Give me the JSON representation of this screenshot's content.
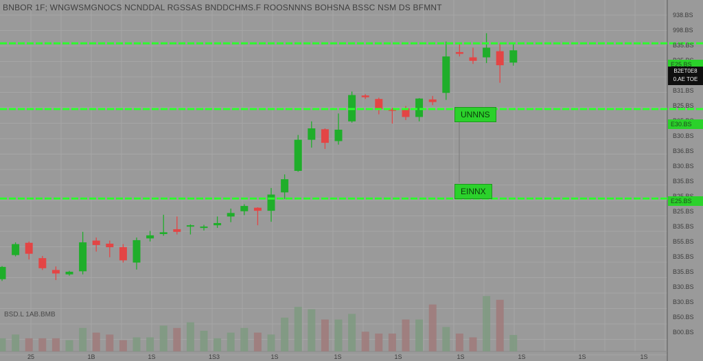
{
  "header": {
    "title": "BNBOR 1F;  WNGWSMGNOCS  NCNDDAL  RGSSAS  BNDDCHMS.F  ROOSNNNS  BOHSNA  BSSC  NSM  DS  BFMNT"
  },
  "volume": {
    "label": "BSD.L  1AB.BMB"
  },
  "price_axis_labels": [
    "938.BS",
    "998.BS",
    "B35.BS",
    "B35.BS",
    "B53.BS",
    "B31.BS",
    "B25.BS",
    "B05.BS",
    "B30.BS",
    "B36.BS",
    "B30.BS",
    "B35.BS",
    "B25.BS",
    "B25.BS",
    "B35.BS",
    "B55.BS",
    "B35.BS",
    "B35.BS",
    "B30.BS",
    "B30.BS",
    "B50.BS",
    "B00.BS"
  ],
  "time_axis_labels": [
    "25",
    "1B",
    "1S",
    "1S3",
    "1S",
    "1S",
    "1S",
    "1S",
    "1S",
    "1S",
    "1S"
  ],
  "levels": [
    {
      "price_tag": "E25.BS",
      "label": ""
    },
    {
      "price_tag": "E30.BS",
      "label": "UNNNS"
    },
    {
      "price_tag": "E25.BS",
      "label": "EINNX"
    }
  ],
  "current_price": {
    "line1": "B2ET0E8",
    "line2": "0.AE TOE"
  },
  "colors": {
    "background": "#9a9a9a",
    "grid": "#a6a6a6",
    "up": "#1fae2a",
    "down": "#e34545",
    "level": "#2cff2c",
    "volume_up": "#7e9a80",
    "volume_down": "#a07a7a"
  },
  "chart_data": {
    "type": "candlestick",
    "y_range": [
      180,
      850
    ],
    "volume_range": [
      0,
      100
    ],
    "candles": [
      {
        "o": 232,
        "c": 260,
        "h": 262,
        "l": 228
      },
      {
        "o": 287,
        "c": 312,
        "h": 316,
        "l": 284
      },
      {
        "o": 315,
        "c": 290,
        "h": 318,
        "l": 277
      },
      {
        "o": 280,
        "c": 257,
        "h": 285,
        "l": 253
      },
      {
        "o": 253,
        "c": 245,
        "h": 261,
        "l": 230
      },
      {
        "o": 243,
        "c": 249,
        "h": 251,
        "l": 240
      },
      {
        "o": 250,
        "c": 316,
        "h": 340,
        "l": 243
      },
      {
        "o": 320,
        "c": 310,
        "h": 327,
        "l": 295
      },
      {
        "o": 313,
        "c": 305,
        "h": 320,
        "l": 282
      },
      {
        "o": 305,
        "c": 275,
        "h": 312,
        "l": 270
      },
      {
        "o": 270,
        "c": 321,
        "h": 327,
        "l": 254
      },
      {
        "o": 325,
        "c": 332,
        "h": 342,
        "l": 318
      },
      {
        "o": 335,
        "c": 339,
        "h": 379,
        "l": 331
      },
      {
        "o": 346,
        "c": 340,
        "h": 375,
        "l": 334
      },
      {
        "o": 352,
        "c": 355,
        "h": 357,
        "l": 334
      },
      {
        "o": 350,
        "c": 352,
        "h": 356,
        "l": 343
      },
      {
        "o": 355,
        "c": 360,
        "h": 375,
        "l": 349
      },
      {
        "o": 375,
        "c": 383,
        "h": 393,
        "l": 362
      },
      {
        "o": 387,
        "c": 399,
        "h": 403,
        "l": 378
      },
      {
        "o": 395,
        "c": 388,
        "h": 396,
        "l": 355
      },
      {
        "o": 388,
        "c": 425,
        "h": 440,
        "l": 363
      },
      {
        "o": 430,
        "c": 460,
        "h": 471,
        "l": 415
      },
      {
        "o": 479,
        "c": 550,
        "h": 561,
        "l": 477
      },
      {
        "o": 550,
        "c": 576,
        "h": 592,
        "l": 532
      },
      {
        "o": 574,
        "c": 543,
        "h": 576,
        "l": 529
      },
      {
        "o": 547,
        "c": 573,
        "h": 610,
        "l": 539
      },
      {
        "o": 592,
        "c": 652,
        "h": 660,
        "l": 589
      },
      {
        "o": 651,
        "c": 647,
        "h": 654,
        "l": 643
      },
      {
        "o": 643,
        "c": 620,
        "h": 646,
        "l": 608
      },
      {
        "o": 619,
        "c": 617,
        "h": 623,
        "l": 587
      },
      {
        "o": 622,
        "c": 602,
        "h": 627,
        "l": 595
      },
      {
        "o": 602,
        "c": 644,
        "h": 645,
        "l": 592
      },
      {
        "o": 642,
        "c": 636,
        "h": 650,
        "l": 629
      },
      {
        "o": 657,
        "c": 740,
        "h": 774,
        "l": 641
      },
      {
        "o": 750,
        "c": 746,
        "h": 771,
        "l": 740
      },
      {
        "o": 738,
        "c": 730,
        "h": 760,
        "l": 723
      },
      {
        "o": 738,
        "c": 760,
        "h": 793,
        "l": 725
      },
      {
        "o": 752,
        "c": 720,
        "h": 770,
        "l": 680
      },
      {
        "o": 726,
        "c": 754,
        "h": 770,
        "l": 719
      }
    ],
    "volumes": [
      28,
      36,
      28,
      28,
      28,
      24,
      50,
      40,
      36,
      24,
      30,
      30,
      55,
      50,
      62,
      44,
      28,
      40,
      50,
      40,
      36,
      72,
      95,
      90,
      68,
      68,
      80,
      42,
      38,
      38,
      68,
      68,
      100,
      52,
      38,
      30,
      118,
      110,
      35
    ],
    "levels": [
      770,
      620,
      416
    ]
  }
}
